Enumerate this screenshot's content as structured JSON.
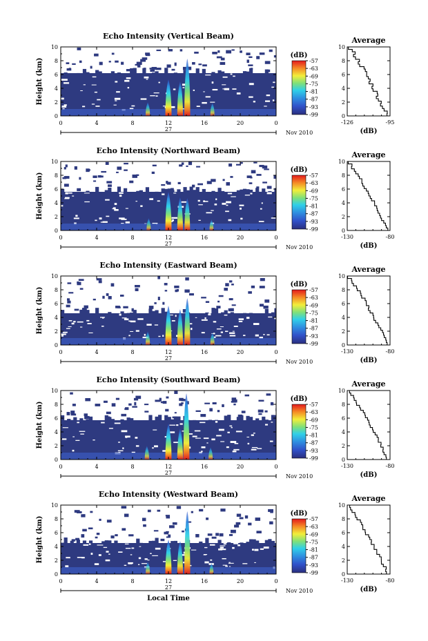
{
  "chart_data": [
    {
      "type": "heatmap",
      "title": "Echo Intensity (Vertical Beam)",
      "ylabel": "Height (km)",
      "x_ticks": [
        "0",
        "4",
        "8",
        "12",
        "16",
        "20",
        "0"
      ],
      "y_ticks": [
        "0",
        "2",
        "4",
        "6",
        "8",
        "10"
      ],
      "xlim": [
        0,
        24
      ],
      "ylim": [
        0,
        10
      ],
      "date_label": "27",
      "date_suffix": "Nov 2010",
      "colorbar": {
        "unit": "(dB)",
        "ticks": [
          "-57",
          "-63",
          "-69",
          "-75",
          "-81",
          "-87",
          "-93",
          "-99"
        ]
      },
      "echo_top_km": 6.2,
      "cells": [
        {
          "time": 12.0,
          "top_km": 5.3,
          "intensity": 1.0
        },
        {
          "time": 13.3,
          "top_km": 5.0,
          "intensity": 0.85
        },
        {
          "time": 14.1,
          "top_km": 8.3,
          "intensity": 0.9
        },
        {
          "time": 9.7,
          "top_km": 2.0,
          "intensity": 0.45
        },
        {
          "time": 16.9,
          "top_km": 1.9,
          "intensity": 0.4
        }
      ],
      "profile": {
        "title": "Average",
        "xlabel": "(dB)",
        "x_ticks": [
          "-126",
          "-95"
        ],
        "y_ticks": [
          "0",
          "2",
          "4",
          "6",
          "8",
          "10"
        ],
        "xlim": [
          -126,
          -95
        ],
        "ylim": [
          0,
          10
        ]
      }
    },
    {
      "type": "heatmap",
      "title": "Echo Intensity (Northward Beam)",
      "ylabel": "Height (km)",
      "x_ticks": [
        "0",
        "4",
        "8",
        "12",
        "16",
        "20",
        "0"
      ],
      "y_ticks": [
        "0",
        "2",
        "4",
        "6",
        "8",
        "10"
      ],
      "xlim": [
        0,
        24
      ],
      "ylim": [
        0,
        10
      ],
      "date_label": "27",
      "date_suffix": "Nov 2010",
      "colorbar": {
        "unit": "(dB)",
        "ticks": [
          "-57",
          "-63",
          "-69",
          "-75",
          "-81",
          "-87",
          "-93",
          "-99"
        ]
      },
      "echo_top_km": 5.6,
      "cells": [
        {
          "time": 12.0,
          "top_km": 5.6,
          "intensity": 1.0
        },
        {
          "time": 13.3,
          "top_km": 4.8,
          "intensity": 0.85
        },
        {
          "time": 14.1,
          "top_km": 4.7,
          "intensity": 0.8
        },
        {
          "time": 9.8,
          "top_km": 1.8,
          "intensity": 0.4
        },
        {
          "time": 16.8,
          "top_km": 1.6,
          "intensity": 0.35
        }
      ],
      "profile": {
        "title": "Average",
        "xlabel": "(dB)",
        "x_ticks": [
          "-130",
          "-80"
        ],
        "y_ticks": [
          "0",
          "2",
          "4",
          "6",
          "8",
          "10"
        ],
        "xlim": [
          -130,
          -80
        ],
        "ylim": [
          0,
          10
        ]
      }
    },
    {
      "type": "heatmap",
      "title": "Echo Intensity (Eastward Beam)",
      "ylabel": "Height (km)",
      "x_ticks": [
        "0",
        "4",
        "8",
        "12",
        "16",
        "20",
        "0"
      ],
      "y_ticks": [
        "0",
        "2",
        "4",
        "6",
        "8",
        "10"
      ],
      "xlim": [
        0,
        24
      ],
      "ylim": [
        0,
        10
      ],
      "date_label": "27",
      "date_suffix": "Nov 2010",
      "colorbar": {
        "unit": "(dB)",
        "ticks": [
          "-57",
          "-63",
          "-69",
          "-75",
          "-81",
          "-87",
          "-93",
          "-99"
        ]
      },
      "echo_top_km": 4.6,
      "cells": [
        {
          "time": 12.0,
          "top_km": 5.7,
          "intensity": 1.0
        },
        {
          "time": 13.3,
          "top_km": 5.2,
          "intensity": 0.85
        },
        {
          "time": 14.1,
          "top_km": 6.8,
          "intensity": 0.85
        },
        {
          "time": 9.7,
          "top_km": 2.0,
          "intensity": 0.45
        },
        {
          "time": 16.9,
          "top_km": 1.8,
          "intensity": 0.4
        }
      ],
      "profile": {
        "title": "Average",
        "xlabel": "(dB)",
        "x_ticks": [
          "-130",
          "-80"
        ],
        "y_ticks": [
          "0",
          "2",
          "4",
          "6",
          "8",
          "10"
        ],
        "xlim": [
          -130,
          -80
        ],
        "ylim": [
          0,
          10
        ]
      }
    },
    {
      "type": "heatmap",
      "title": "Echo Intensity (Southward Beam)",
      "ylabel": "Height (km)",
      "x_ticks": [
        "0",
        "4",
        "8",
        "12",
        "16",
        "20",
        "0"
      ],
      "y_ticks": [
        "0",
        "2",
        "4",
        "6",
        "8",
        "10"
      ],
      "xlim": [
        0,
        24
      ],
      "ylim": [
        0,
        10
      ],
      "date_label": "27",
      "date_suffix": "Nov 2010",
      "colorbar": {
        "unit": "(dB)",
        "ticks": [
          "-57",
          "-63",
          "-69",
          "-75",
          "-81",
          "-87",
          "-93",
          "-99"
        ]
      },
      "echo_top_km": 5.7,
      "cells": [
        {
          "time": 12.0,
          "top_km": 5.2,
          "intensity": 1.0
        },
        {
          "time": 13.3,
          "top_km": 4.5,
          "intensity": 0.85
        },
        {
          "time": 14.0,
          "top_km": 9.6,
          "intensity": 0.95
        },
        {
          "time": 9.6,
          "top_km": 2.0,
          "intensity": 0.45
        },
        {
          "time": 16.7,
          "top_km": 1.8,
          "intensity": 0.4
        }
      ],
      "profile": {
        "title": "Average",
        "xlabel": "(dB)",
        "x_ticks": [
          "-130",
          "-80"
        ],
        "y_ticks": [
          "0",
          "2",
          "4",
          "6",
          "8",
          "10"
        ],
        "xlim": [
          -130,
          -80
        ],
        "ylim": [
          0,
          10
        ]
      }
    },
    {
      "type": "heatmap",
      "title": "Echo Intensity (Westward Beam)",
      "ylabel": "Height (km)",
      "xlabel": "Local Time",
      "x_ticks": [
        "0",
        "4",
        "8",
        "12",
        "16",
        "20",
        "0"
      ],
      "y_ticks": [
        "0",
        "2",
        "4",
        "6",
        "8",
        "10"
      ],
      "xlim": [
        0,
        24
      ],
      "ylim": [
        0,
        10
      ],
      "date_label": "27",
      "date_suffix": "Nov 2010",
      "colorbar": {
        "unit": "(dB)",
        "ticks": [
          "-57",
          "-63",
          "-69",
          "-75",
          "-81",
          "-87",
          "-93",
          "-99"
        ]
      },
      "echo_top_km": 4.5,
      "cells": [
        {
          "time": 12.0,
          "top_km": 5.0,
          "intensity": 1.0
        },
        {
          "time": 13.3,
          "top_km": 4.8,
          "intensity": 0.85
        },
        {
          "time": 14.1,
          "top_km": 9.1,
          "intensity": 0.9
        },
        {
          "time": 9.7,
          "top_km": 1.8,
          "intensity": 0.4
        },
        {
          "time": 16.8,
          "top_km": 1.6,
          "intensity": 0.35
        }
      ],
      "profile": {
        "title": "Average",
        "xlabel": "(dB)",
        "x_ticks": [
          "-130",
          "-80"
        ],
        "y_ticks": [
          "0",
          "2",
          "4",
          "6",
          "8",
          "10"
        ],
        "xlim": [
          -130,
          -80
        ],
        "ylim": [
          0,
          10
        ]
      }
    }
  ]
}
